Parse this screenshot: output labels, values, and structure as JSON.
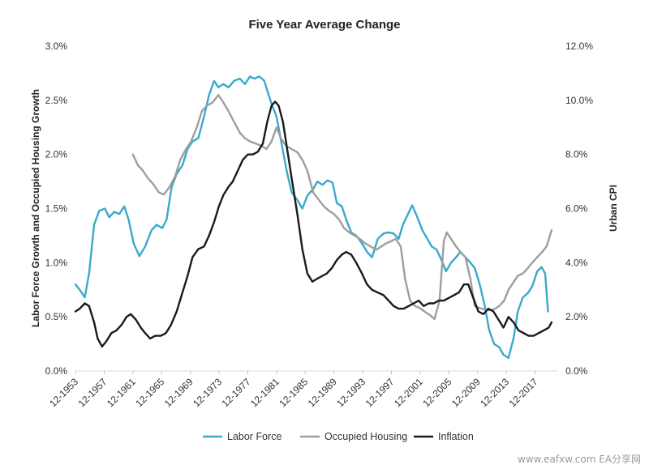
{
  "chart_data": {
    "type": "line",
    "title": "Five Year Average Change",
    "ylabel_left": "Labor Force Growth and Occupied Housing Growth",
    "ylabel_right": "Urban CPI",
    "y_left": {
      "min": 0,
      "max": 3.0,
      "ticks": [
        "0.0%",
        "0.5%",
        "1.0%",
        "1.5%",
        "2.0%",
        "2.5%",
        "3.0%"
      ]
    },
    "y_right": {
      "min": 0,
      "max": 12.0,
      "ticks": [
        "0.0%",
        "2.0%",
        "4.0%",
        "6.0%",
        "8.0%",
        "10.0%",
        "12.0%"
      ]
    },
    "x_range": [
      1953.9,
      2021.0
    ],
    "x_ticks": [
      {
        "label": "12-1953",
        "year": 1953.9
      },
      {
        "label": "12-1957",
        "year": 1957.9
      },
      {
        "label": "12-1961",
        "year": 1961.9
      },
      {
        "label": "12-1965",
        "year": 1965.9
      },
      {
        "label": "12-1969",
        "year": 1969.9
      },
      {
        "label": "12-1973",
        "year": 1973.9
      },
      {
        "label": "12-1977",
        "year": 1977.9
      },
      {
        "label": "12-1981",
        "year": 1981.9
      },
      {
        "label": "12-1985",
        "year": 1985.9
      },
      {
        "label": "12-1989",
        "year": 1989.9
      },
      {
        "label": "12-1993",
        "year": 1993.9
      },
      {
        "label": "12-1997",
        "year": 1997.9
      },
      {
        "label": "12-2001",
        "year": 2001.9
      },
      {
        "label": "12-2005",
        "year": 2005.9
      },
      {
        "label": "12-2009",
        "year": 2009.9
      },
      {
        "label": "12-2013",
        "year": 2013.9
      },
      {
        "label": "12-2017",
        "year": 2017.9
      }
    ],
    "legend_position": "bottom",
    "grid": false,
    "series": [
      {
        "name": "Labor Force",
        "axis": "left",
        "color": "#3aa9cc",
        "points": [
          [
            1953.9,
            0.8
          ],
          [
            1954.5,
            0.75
          ],
          [
            1955.2,
            0.68
          ],
          [
            1955.8,
            0.9
          ],
          [
            1956.5,
            1.35
          ],
          [
            1957.2,
            1.48
          ],
          [
            1958.0,
            1.5
          ],
          [
            1958.6,
            1.42
          ],
          [
            1959.3,
            1.47
          ],
          [
            1960.0,
            1.45
          ],
          [
            1960.7,
            1.52
          ],
          [
            1961.3,
            1.4
          ],
          [
            1962.0,
            1.18
          ],
          [
            1962.8,
            1.06
          ],
          [
            1963.6,
            1.15
          ],
          [
            1964.5,
            1.3
          ],
          [
            1965.2,
            1.35
          ],
          [
            1966.0,
            1.32
          ],
          [
            1966.6,
            1.4
          ],
          [
            1967.3,
            1.7
          ],
          [
            1968.0,
            1.82
          ],
          [
            1968.8,
            1.9
          ],
          [
            1969.5,
            2.05
          ],
          [
            1970.2,
            2.12
          ],
          [
            1971.0,
            2.15
          ],
          [
            1971.8,
            2.35
          ],
          [
            1972.5,
            2.55
          ],
          [
            1973.2,
            2.68
          ],
          [
            1973.8,
            2.62
          ],
          [
            1974.5,
            2.65
          ],
          [
            1975.2,
            2.62
          ],
          [
            1976.0,
            2.68
          ],
          [
            1976.8,
            2.7
          ],
          [
            1977.5,
            2.65
          ],
          [
            1978.2,
            2.72
          ],
          [
            1978.8,
            2.7
          ],
          [
            1979.5,
            2.72
          ],
          [
            1980.2,
            2.68
          ],
          [
            1980.8,
            2.55
          ],
          [
            1981.3,
            2.45
          ],
          [
            1981.9,
            2.35
          ],
          [
            1982.6,
            2.1
          ],
          [
            1983.3,
            1.85
          ],
          [
            1984.0,
            1.65
          ],
          [
            1984.8,
            1.58
          ],
          [
            1985.5,
            1.5
          ],
          [
            1986.2,
            1.62
          ],
          [
            1987.0,
            1.68
          ],
          [
            1987.6,
            1.75
          ],
          [
            1988.3,
            1.72
          ],
          [
            1989.0,
            1.76
          ],
          [
            1989.7,
            1.74
          ],
          [
            1990.3,
            1.55
          ],
          [
            1991.0,
            1.52
          ],
          [
            1991.6,
            1.4
          ],
          [
            1992.3,
            1.28
          ],
          [
            1993.0,
            1.25
          ],
          [
            1993.8,
            1.18
          ],
          [
            1994.5,
            1.1
          ],
          [
            1995.2,
            1.05
          ],
          [
            1996.0,
            1.22
          ],
          [
            1996.8,
            1.27
          ],
          [
            1997.5,
            1.28
          ],
          [
            1998.2,
            1.27
          ],
          [
            1998.9,
            1.22
          ],
          [
            1999.5,
            1.35
          ],
          [
            2000.2,
            1.45
          ],
          [
            2000.8,
            1.53
          ],
          [
            2001.5,
            1.42
          ],
          [
            2002.2,
            1.3
          ],
          [
            2002.9,
            1.22
          ],
          [
            2003.5,
            1.15
          ],
          [
            2004.2,
            1.12
          ],
          [
            2004.9,
            1.02
          ],
          [
            2005.5,
            0.92
          ],
          [
            2006.2,
            1.0
          ],
          [
            2006.9,
            1.05
          ],
          [
            2007.5,
            1.1
          ],
          [
            2008.2,
            1.05
          ],
          [
            2008.9,
            1.0
          ],
          [
            2009.5,
            0.95
          ],
          [
            2010.2,
            0.8
          ],
          [
            2010.9,
            0.6
          ],
          [
            2011.5,
            0.38
          ],
          [
            2012.2,
            0.25
          ],
          [
            2012.9,
            0.22
          ],
          [
            2013.5,
            0.15
          ],
          [
            2014.2,
            0.12
          ],
          [
            2014.9,
            0.3
          ],
          [
            2015.5,
            0.55
          ],
          [
            2016.2,
            0.68
          ],
          [
            2016.9,
            0.72
          ],
          [
            2017.5,
            0.78
          ],
          [
            2018.2,
            0.92
          ],
          [
            2018.8,
            0.96
          ],
          [
            2019.3,
            0.9
          ],
          [
            2019.7,
            0.55
          ]
        ]
      },
      {
        "name": "Occupied Housing",
        "axis": "left",
        "color": "#9e9e9e",
        "points": [
          [
            1961.9,
            2.0
          ],
          [
            1962.6,
            1.9
          ],
          [
            1963.3,
            1.85
          ],
          [
            1964.0,
            1.78
          ],
          [
            1964.8,
            1.72
          ],
          [
            1965.5,
            1.65
          ],
          [
            1966.2,
            1.63
          ],
          [
            1967.0,
            1.7
          ],
          [
            1967.8,
            1.8
          ],
          [
            1968.5,
            1.95
          ],
          [
            1969.3,
            2.05
          ],
          [
            1970.0,
            2.12
          ],
          [
            1970.8,
            2.25
          ],
          [
            1971.5,
            2.4
          ],
          [
            1972.2,
            2.45
          ],
          [
            1973.0,
            2.48
          ],
          [
            1973.8,
            2.55
          ],
          [
            1974.5,
            2.48
          ],
          [
            1975.2,
            2.4
          ],
          [
            1976.0,
            2.3
          ],
          [
            1976.8,
            2.2
          ],
          [
            1977.5,
            2.15
          ],
          [
            1978.2,
            2.12
          ],
          [
            1979.0,
            2.1
          ],
          [
            1979.8,
            2.08
          ],
          [
            1980.5,
            2.05
          ],
          [
            1981.2,
            2.12
          ],
          [
            1981.9,
            2.25
          ],
          [
            1982.5,
            2.15
          ],
          [
            1983.2,
            2.08
          ],
          [
            1984.0,
            2.05
          ],
          [
            1984.8,
            2.02
          ],
          [
            1985.5,
            1.95
          ],
          [
            1986.2,
            1.85
          ],
          [
            1987.0,
            1.65
          ],
          [
            1987.8,
            1.58
          ],
          [
            1988.5,
            1.52
          ],
          [
            1989.2,
            1.48
          ],
          [
            1989.9,
            1.45
          ],
          [
            1990.6,
            1.4
          ],
          [
            1991.3,
            1.32
          ],
          [
            1992.0,
            1.28
          ],
          [
            1992.8,
            1.25
          ],
          [
            1993.5,
            1.22
          ],
          [
            1994.2,
            1.18
          ],
          [
            1995.0,
            1.15
          ],
          [
            1995.8,
            1.12
          ],
          [
            1996.5,
            1.15
          ],
          [
            1997.2,
            1.18
          ],
          [
            1997.9,
            1.2
          ],
          [
            1998.5,
            1.22
          ],
          [
            1999.2,
            1.15
          ],
          [
            1999.8,
            0.85
          ],
          [
            2000.5,
            0.65
          ],
          [
            2001.2,
            0.6
          ],
          [
            2001.9,
            0.58
          ],
          [
            2002.5,
            0.55
          ],
          [
            2003.2,
            0.52
          ],
          [
            2003.9,
            0.48
          ],
          [
            2004.6,
            0.65
          ],
          [
            2005.2,
            1.2
          ],
          [
            2005.6,
            1.28
          ],
          [
            2006.2,
            1.22
          ],
          [
            2006.9,
            1.15
          ],
          [
            2007.5,
            1.1
          ],
          [
            2008.2,
            1.05
          ],
          [
            2008.9,
            0.85
          ],
          [
            2009.5,
            0.6
          ],
          [
            2010.2,
            0.58
          ],
          [
            2010.9,
            0.57
          ],
          [
            2011.5,
            0.56
          ],
          [
            2012.2,
            0.57
          ],
          [
            2012.9,
            0.6
          ],
          [
            2013.6,
            0.65
          ],
          [
            2014.2,
            0.75
          ],
          [
            2014.9,
            0.82
          ],
          [
            2015.5,
            0.88
          ],
          [
            2016.2,
            0.9
          ],
          [
            2016.9,
            0.95
          ],
          [
            2017.5,
            1.0
          ],
          [
            2018.2,
            1.05
          ],
          [
            2018.9,
            1.1
          ],
          [
            2019.5,
            1.15
          ],
          [
            2020.2,
            1.3
          ]
        ]
      },
      {
        "name": "Inflation",
        "axis": "right",
        "color": "#1a1a1a",
        "points": [
          [
            1953.9,
            2.2
          ],
          [
            1954.5,
            2.3
          ],
          [
            1955.2,
            2.5
          ],
          [
            1955.8,
            2.4
          ],
          [
            1956.5,
            1.8
          ],
          [
            1957.0,
            1.2
          ],
          [
            1957.6,
            0.9
          ],
          [
            1958.2,
            1.1
          ],
          [
            1958.9,
            1.4
          ],
          [
            1959.6,
            1.5
          ],
          [
            1960.3,
            1.7
          ],
          [
            1961.0,
            2.0
          ],
          [
            1961.6,
            2.1
          ],
          [
            1962.3,
            1.9
          ],
          [
            1963.0,
            1.6
          ],
          [
            1963.6,
            1.4
          ],
          [
            1964.3,
            1.2
          ],
          [
            1965.0,
            1.3
          ],
          [
            1965.8,
            1.3
          ],
          [
            1966.5,
            1.4
          ],
          [
            1967.2,
            1.7
          ],
          [
            1968.0,
            2.2
          ],
          [
            1968.8,
            2.9
          ],
          [
            1969.5,
            3.5
          ],
          [
            1970.2,
            4.2
          ],
          [
            1971.0,
            4.5
          ],
          [
            1971.8,
            4.6
          ],
          [
            1972.5,
            5.0
          ],
          [
            1973.2,
            5.5
          ],
          [
            1973.9,
            6.1
          ],
          [
            1974.5,
            6.5
          ],
          [
            1975.2,
            6.8
          ],
          [
            1975.8,
            7.0
          ],
          [
            1976.5,
            7.4
          ],
          [
            1977.2,
            7.8
          ],
          [
            1977.9,
            8.0
          ],
          [
            1978.6,
            8.0
          ],
          [
            1979.3,
            8.1
          ],
          [
            1980.0,
            8.4
          ],
          [
            1980.6,
            9.2
          ],
          [
            1981.2,
            9.8
          ],
          [
            1981.7,
            9.95
          ],
          [
            1982.2,
            9.8
          ],
          [
            1982.8,
            9.2
          ],
          [
            1983.5,
            8.0
          ],
          [
            1984.2,
            6.8
          ],
          [
            1984.8,
            5.8
          ],
          [
            1985.5,
            4.5
          ],
          [
            1986.2,
            3.6
          ],
          [
            1986.9,
            3.3
          ],
          [
            1987.5,
            3.4
          ],
          [
            1988.2,
            3.5
          ],
          [
            1988.9,
            3.6
          ],
          [
            1989.6,
            3.8
          ],
          [
            1990.3,
            4.1
          ],
          [
            1991.0,
            4.3
          ],
          [
            1991.6,
            4.4
          ],
          [
            1992.3,
            4.3
          ],
          [
            1993.0,
            4.0
          ],
          [
            1993.8,
            3.6
          ],
          [
            1994.5,
            3.2
          ],
          [
            1995.2,
            3.0
          ],
          [
            1996.0,
            2.9
          ],
          [
            1996.8,
            2.8
          ],
          [
            1997.5,
            2.6
          ],
          [
            1998.2,
            2.4
          ],
          [
            1998.9,
            2.3
          ],
          [
            1999.6,
            2.3
          ],
          [
            2000.3,
            2.4
          ],
          [
            2001.0,
            2.5
          ],
          [
            2001.7,
            2.6
          ],
          [
            2002.4,
            2.4
          ],
          [
            2003.1,
            2.5
          ],
          [
            2003.8,
            2.5
          ],
          [
            2004.5,
            2.6
          ],
          [
            2005.2,
            2.6
          ],
          [
            2005.9,
            2.7
          ],
          [
            2006.6,
            2.8
          ],
          [
            2007.3,
            2.9
          ],
          [
            2008.0,
            3.2
          ],
          [
            2008.6,
            3.2
          ],
          [
            2009.3,
            2.7
          ],
          [
            2010.0,
            2.2
          ],
          [
            2010.7,
            2.1
          ],
          [
            2011.4,
            2.3
          ],
          [
            2012.1,
            2.2
          ],
          [
            2012.8,
            1.9
          ],
          [
            2013.5,
            1.6
          ],
          [
            2014.2,
            2.0
          ],
          [
            2014.9,
            1.8
          ],
          [
            2015.6,
            1.5
          ],
          [
            2016.3,
            1.4
          ],
          [
            2017.0,
            1.3
          ],
          [
            2017.7,
            1.3
          ],
          [
            2018.4,
            1.4
          ],
          [
            2019.1,
            1.5
          ],
          [
            2019.8,
            1.6
          ],
          [
            2020.2,
            1.8
          ]
        ]
      }
    ]
  },
  "watermark": "www.eafxw.com    EA分享网"
}
